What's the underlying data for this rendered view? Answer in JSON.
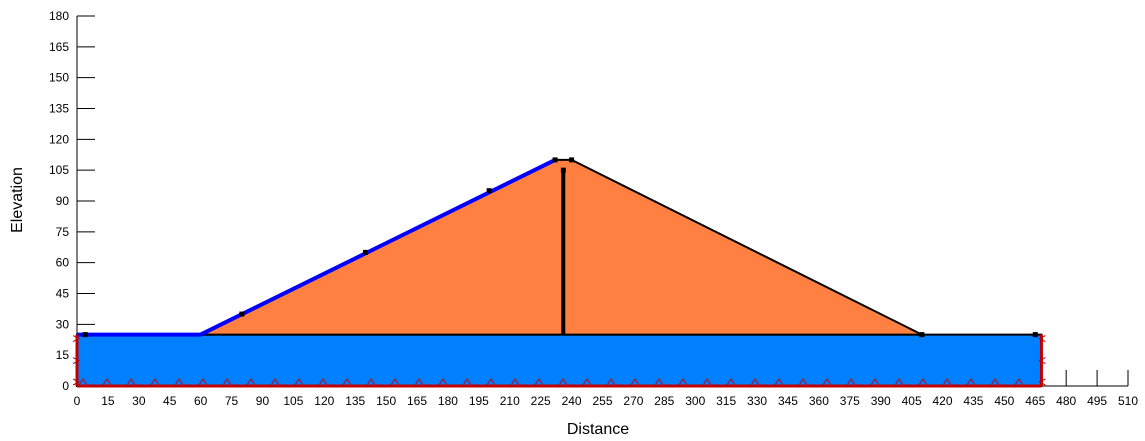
{
  "chart_data": {
    "type": "diagram",
    "xlabel": "Distance",
    "ylabel": "Elevation",
    "xlim": [
      0,
      510
    ],
    "ylim": [
      0,
      180
    ],
    "x_ticks": [
      0,
      15,
      30,
      45,
      60,
      75,
      90,
      105,
      120,
      135,
      150,
      165,
      180,
      195,
      210,
      225,
      240,
      255,
      270,
      285,
      300,
      315,
      330,
      345,
      360,
      375,
      390,
      405,
      420,
      435,
      450,
      465,
      480,
      495,
      510
    ],
    "y_ticks": [
      0,
      15,
      30,
      45,
      60,
      75,
      90,
      105,
      120,
      135,
      150,
      165,
      180
    ],
    "regions": [
      {
        "name": "foundation",
        "color": "#0080ff",
        "points": [
          [
            0,
            0
          ],
          [
            468,
            0
          ],
          [
            468,
            25
          ],
          [
            0,
            25
          ]
        ]
      },
      {
        "name": "embankment",
        "color": "#ff8040",
        "points": [
          [
            60,
            25
          ],
          [
            232,
            110
          ],
          [
            240,
            110
          ],
          [
            410,
            25
          ]
        ]
      }
    ],
    "water_line": {
      "color": "#0000ff",
      "points": [
        [
          0,
          25
        ],
        [
          60,
          25
        ],
        [
          232,
          110
        ]
      ]
    },
    "drain_line": {
      "color": "#000000",
      "points": [
        [
          236,
          25
        ],
        [
          236,
          105
        ]
      ]
    },
    "boundary_color": "#c00000",
    "markers": [
      [
        4,
        25
      ],
      [
        80,
        35
      ],
      [
        140,
        65
      ],
      [
        200,
        95
      ],
      [
        232,
        110
      ],
      [
        240,
        110
      ],
      [
        410,
        25
      ],
      [
        465,
        25
      ],
      [
        236,
        105
      ]
    ]
  }
}
